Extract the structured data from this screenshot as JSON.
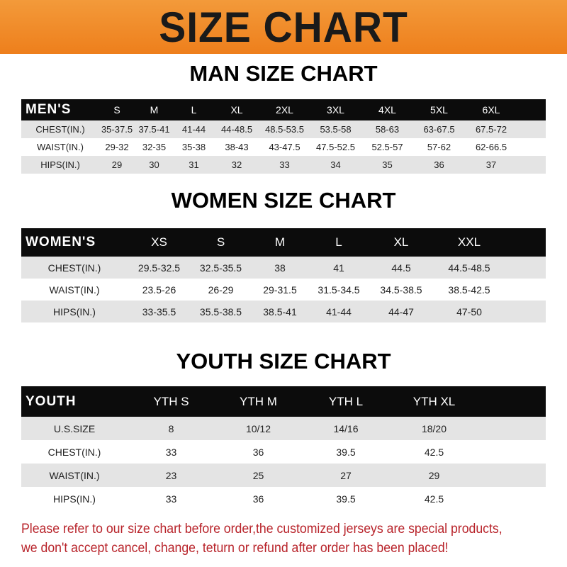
{
  "banner_title": "SIZE CHART",
  "men": {
    "title": "MAN SIZE CHART",
    "header": [
      "MEN'S",
      "S",
      "M",
      "L",
      "XL",
      "2XL",
      "3XL",
      "4XL",
      "5XL",
      "6XL"
    ],
    "rows": [
      [
        "CHEST(IN.)",
        "35-37.5",
        "37.5-41",
        "41-44",
        "44-48.5",
        "48.5-53.5",
        "53.5-58",
        "58-63",
        "63-67.5",
        "67.5-72"
      ],
      [
        "WAIST(IN.)",
        "29-32",
        "32-35",
        "35-38",
        "38-43",
        "43-47.5",
        "47.5-52.5",
        "52.5-57",
        "57-62",
        "62-66.5"
      ],
      [
        "HIPS(IN.)",
        "29",
        "30",
        "31",
        "32",
        "33",
        "34",
        "35",
        "36",
        "37"
      ]
    ]
  },
  "women": {
    "title": "WOMEN SIZE CHART",
    "header": [
      "WOMEN'S",
      "XS",
      "S",
      "M",
      "L",
      "XL",
      "XXL"
    ],
    "rows": [
      [
        "CHEST(IN.)",
        "29.5-32.5",
        "32.5-35.5",
        "38",
        "41",
        "44.5",
        "44.5-48.5"
      ],
      [
        "WAIST(IN.)",
        "23.5-26",
        "26-29",
        "29-31.5",
        "31.5-34.5",
        "34.5-38.5",
        "38.5-42.5"
      ],
      [
        "HIPS(IN.)",
        "33-35.5",
        "35.5-38.5",
        "38.5-41",
        "41-44",
        "44-47",
        "47-50"
      ]
    ]
  },
  "youth": {
    "title": "YOUTH SIZE CHART",
    "header": [
      "YOUTH",
      "YTH S",
      "YTH M",
      "YTH L",
      "YTH XL"
    ],
    "rows": [
      [
        "U.S.SIZE",
        "8",
        "10/12",
        "14/16",
        "18/20"
      ],
      [
        "CHEST(IN.)",
        "33",
        "36",
        "39.5",
        "42.5"
      ],
      [
        "WAIST(IN.)",
        "23",
        "25",
        "27",
        "29"
      ],
      [
        "HIPS(IN.)",
        "33",
        "36",
        "39.5",
        "42.5"
      ]
    ]
  },
  "note": {
    "line1": "Please refer to our size chart before order,the customized jerseys are special products,",
    "line2": "we don't accept cancel, change, teturn or refund after order has been placed!"
  },
  "colors": {
    "banner": "#ee7f1c",
    "header_row": "#0c0c0c",
    "stripe": "#e4e4e4",
    "note": "#b8232a"
  }
}
